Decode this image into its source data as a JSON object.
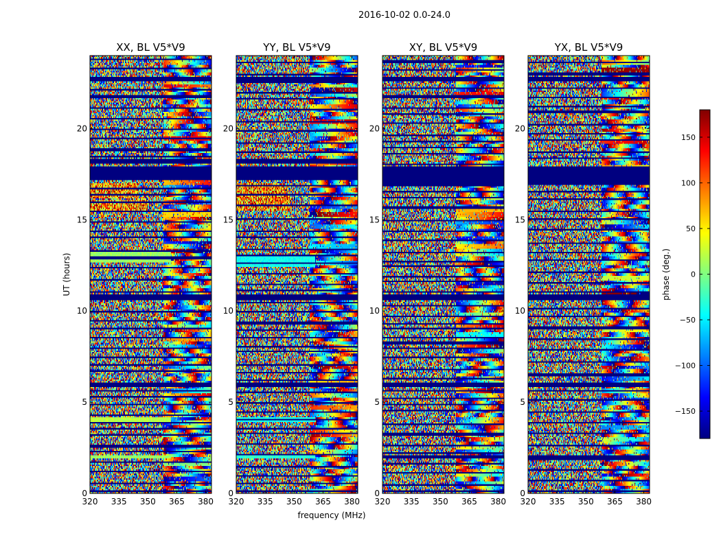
{
  "chart_data": {
    "type": "heatmap",
    "title": "2016-10-02 0.0-24.0",
    "xlabel": "frequency (MHz)",
    "ylabel": "UT (hours)",
    "xlim": [
      320,
      383
    ],
    "ylim": [
      0,
      24
    ],
    "xticks": [
      320,
      335,
      350,
      365,
      380
    ],
    "yticks": [
      0,
      5,
      10,
      15,
      20
    ],
    "xtick_labels": [
      "320",
      "335",
      "350",
      "365",
      "380"
    ],
    "ytick_labels": [
      "0",
      "5",
      "10",
      "15",
      "20"
    ],
    "colormap": "jet",
    "colorbar": {
      "label": "phase (deg.)",
      "range": [
        -180,
        180
      ],
      "ticks": [
        150,
        100,
        50,
        0,
        -50,
        -100,
        -150
      ],
      "tick_labels": [
        "150",
        "100",
        "50",
        "0",
        "−50",
        "−100",
        "−150"
      ]
    },
    "panels": [
      {
        "title": "XX, BL V5*V9",
        "masked_ut_bands": [
          [
            17.2,
            17.9
          ],
          [
            10.6,
            10.9
          ],
          [
            5.8,
            6.05
          ],
          [
            22.6,
            22.8
          ],
          [
            18.1,
            18.3
          ]
        ],
        "constant_phase_bands": [
          {
            "ut": [
              12.7,
              13.3
            ],
            "freq": [
              320,
              362
            ],
            "phase": 10
          },
          {
            "ut": [
              3.9,
              4.15
            ],
            "freq": [
              320,
              362
            ],
            "phase": 20
          },
          {
            "ut": [
              1.95,
              2.1
            ],
            "freq": [
              320,
              362
            ],
            "phase": 10
          },
          {
            "ut": [
              5.9,
              6.05
            ],
            "freq": [
              320,
              362
            ],
            "phase": 10
          }
        ],
        "warm_regions": [
          {
            "ut": [
              15.5,
              16.1
            ],
            "freq": [
              320,
              350
            ]
          },
          {
            "ut": [
              16.2,
              17.0
            ],
            "freq": [
              320,
              345
            ]
          }
        ]
      },
      {
        "title": "YY, BL V5*V9",
        "masked_ut_bands": [
          [
            17.2,
            17.9
          ],
          [
            10.6,
            10.9
          ],
          [
            5.8,
            6.05
          ],
          [
            22.6,
            22.8
          ],
          [
            18.1,
            18.3
          ]
        ],
        "constant_phase_bands": [
          {
            "ut": [
              12.4,
              13.1
            ],
            "freq": [
              320,
              361
            ],
            "phase": -40
          },
          {
            "ut": [
              3.9,
              4.15
            ],
            "freq": [
              320,
              361
            ],
            "phase": -40
          },
          {
            "ut": [
              1.95,
              2.1
            ],
            "freq": [
              320,
              361
            ],
            "phase": -30
          },
          {
            "ut": [
              5.9,
              6.05
            ],
            "freq": [
              320,
              361
            ],
            "phase": -20
          }
        ],
        "warm_regions": [
          {
            "ut": [
              15.5,
              16.3
            ],
            "freq": [
              320,
              348
            ]
          },
          {
            "ut": [
              16.3,
              17.0
            ],
            "freq": [
              320,
              345
            ]
          }
        ]
      },
      {
        "title": "XY, BL V5*V9",
        "masked_ut_bands": [
          [
            16.9,
            17.9
          ],
          [
            10.6,
            10.9
          ],
          [
            5.8,
            6.1
          ],
          [
            22.6,
            22.8
          ],
          [
            1.9,
            2.1
          ]
        ],
        "constant_phase_bands": [],
        "warm_regions": []
      },
      {
        "title": "YX, BL V5*V9",
        "masked_ut_bands": [
          [
            16.9,
            17.9
          ],
          [
            10.6,
            10.9
          ],
          [
            5.8,
            6.1
          ],
          [
            22.6,
            22.8
          ],
          [
            1.9,
            2.1
          ]
        ],
        "constant_phase_bands": [],
        "warm_regions": []
      }
    ]
  }
}
